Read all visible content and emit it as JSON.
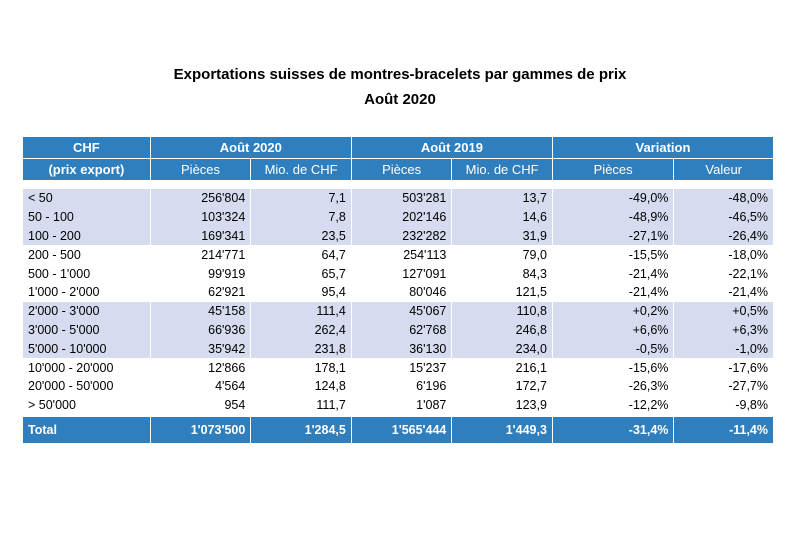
{
  "title": "Exportations suisses de montres-bracelets par gammes de prix",
  "subtitle": "Août 2020",
  "header": {
    "col0_line1": "CHF",
    "col0_line2": "(prix export)",
    "group1": "Août 2020",
    "group2": "Août 2019",
    "group3": "Variation",
    "sub1": "Pièces",
    "sub2": "Mio. de CHF",
    "sub3": "Pièces",
    "sub4": "Mio. de CHF",
    "sub5": "Pièces",
    "sub6": "Valeur"
  },
  "rows": [
    {
      "range": "< 50",
      "p2020": "256'804",
      "v2020": "7,1",
      "p2019": "503'281",
      "v2019": "13,7",
      "varp": "-49,0%",
      "varv": "-48,0%"
    },
    {
      "range": "50 - 100",
      "p2020": "103'324",
      "v2020": "7,8",
      "p2019": "202'146",
      "v2019": "14,6",
      "varp": "-48,9%",
      "varv": "-46,5%"
    },
    {
      "range": "100 - 200",
      "p2020": "169'341",
      "v2020": "23,5",
      "p2019": "232'282",
      "v2019": "31,9",
      "varp": "-27,1%",
      "varv": "-26,4%"
    },
    {
      "range": "200 - 500",
      "p2020": "214'771",
      "v2020": "64,7",
      "p2019": "254'113",
      "v2019": "79,0",
      "varp": "-15,5%",
      "varv": "-18,0%"
    },
    {
      "range": "500 - 1'000",
      "p2020": "99'919",
      "v2020": "65,7",
      "p2019": "127'091",
      "v2019": "84,3",
      "varp": "-21,4%",
      "varv": "-22,1%"
    },
    {
      "range": "1'000 - 2'000",
      "p2020": "62'921",
      "v2020": "95,4",
      "p2019": "80'046",
      "v2019": "121,5",
      "varp": "-21,4%",
      "varv": "-21,4%"
    },
    {
      "range": "2'000 - 3'000",
      "p2020": "45'158",
      "v2020": "111,4",
      "p2019": "45'067",
      "v2019": "110,8",
      "varp": "+0,2%",
      "varv": "+0,5%"
    },
    {
      "range": "3'000 - 5'000",
      "p2020": "66'936",
      "v2020": "262,4",
      "p2019": "62'768",
      "v2019": "246,8",
      "varp": "+6,6%",
      "varv": "+6,3%"
    },
    {
      "range": "5'000 - 10'000",
      "p2020": "35'942",
      "v2020": "231,8",
      "p2019": "36'130",
      "v2019": "234,0",
      "varp": "-0,5%",
      "varv": "-1,0%"
    },
    {
      "range": "10'000 - 20'000",
      "p2020": "12'866",
      "v2020": "178,1",
      "p2019": "15'237",
      "v2019": "216,1",
      "varp": "-15,6%",
      "varv": "-17,6%"
    },
    {
      "range": "20'000 - 50'000",
      "p2020": "4'564",
      "v2020": "124,8",
      "p2019": "6'196",
      "v2019": "172,7",
      "varp": "-26,3%",
      "varv": "-27,7%"
    },
    {
      "range": "> 50'000",
      "p2020": "954",
      "v2020": "111,7",
      "p2019": "1'087",
      "v2019": "123,9",
      "varp": "-12,2%",
      "varv": "-9,8%"
    }
  ],
  "total": {
    "range": "Total",
    "p2020": "1'073'500",
    "v2020": "1'284,5",
    "p2019": "1'565'444",
    "v2019": "1'449,3",
    "varp": "-31,4%",
    "varv": "-11,4%"
  },
  "colors": {
    "header_blue": "#2f7fbe",
    "band_shade": "#d6dbef"
  }
}
